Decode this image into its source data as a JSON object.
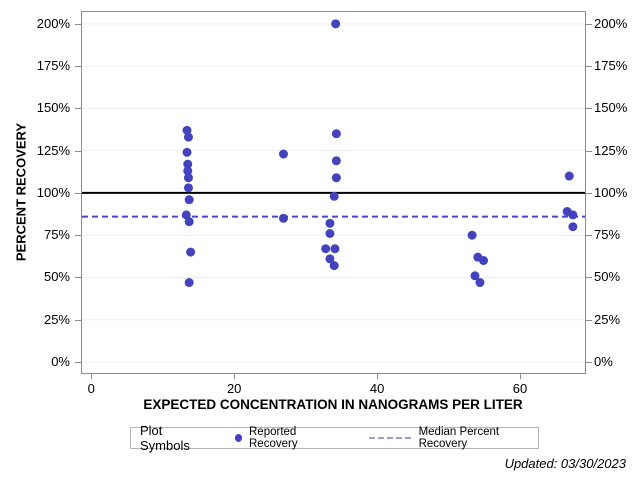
{
  "footer": {
    "updated_text": "Updated: 03/30/2023"
  },
  "colors": {
    "marker": "#4343bd",
    "median_line": "#4848c4",
    "reference_line": "#000000",
    "grid": "#ededed",
    "frame": "#8b8b8b",
    "legend_dash": "#98a0d2",
    "text": "#000000"
  },
  "chart_data": {
    "type": "scatter",
    "title": "",
    "xlabel": "EXPECTED CONCENTRATION IN NANOGRAMS PER LITER",
    "ylabel": "PERCENT RECOVERY",
    "x_axis": {
      "min": -1.3,
      "max": 69.1,
      "ticks": [
        0,
        20,
        40,
        60
      ]
    },
    "y_axis": {
      "min": -6.5,
      "max": 207,
      "ticks": [
        0,
        25,
        50,
        75,
        100,
        125,
        150,
        175,
        200
      ],
      "tick_suffix": "%",
      "mirror_right": true
    },
    "grid": true,
    "reference_lines": [
      {
        "name": "hundred-percent-reference-line",
        "value": 100,
        "style": "solid",
        "width": 2
      },
      {
        "name": "median-percent-recovery-line",
        "value": 86,
        "style": "dashed",
        "width": 2
      }
    ],
    "series": [
      {
        "name": "Reported Recovery",
        "marker": "circle",
        "points": [
          [
            13.4,
            137
          ],
          [
            13.6,
            133
          ],
          [
            13.4,
            124
          ],
          [
            13.5,
            117
          ],
          [
            13.5,
            113
          ],
          [
            13.6,
            109
          ],
          [
            13.6,
            103
          ],
          [
            13.7,
            96
          ],
          [
            13.3,
            87
          ],
          [
            13.7,
            83
          ],
          [
            13.9,
            65
          ],
          [
            13.7,
            47
          ],
          [
            26.9,
            123
          ],
          [
            26.9,
            85
          ],
          [
            34.2,
            200
          ],
          [
            34.3,
            135
          ],
          [
            34.3,
            119
          ],
          [
            34.3,
            109
          ],
          [
            34.0,
            98
          ],
          [
            33.4,
            82
          ],
          [
            33.4,
            76
          ],
          [
            32.8,
            67
          ],
          [
            34.1,
            67
          ],
          [
            33.4,
            61
          ],
          [
            34.0,
            57
          ],
          [
            53.3,
            75
          ],
          [
            54.1,
            62
          ],
          [
            54.9,
            60
          ],
          [
            53.7,
            51
          ],
          [
            54.4,
            47
          ],
          [
            66.9,
            110
          ],
          [
            66.6,
            89
          ],
          [
            67.4,
            87
          ],
          [
            67.4,
            80
          ]
        ]
      }
    ],
    "legend": {
      "title": "Plot Symbols",
      "position": "bottom",
      "entries": [
        {
          "symbol": "dot",
          "label": "Reported Recovery"
        },
        {
          "symbol": "dashed-line",
          "label": "Median Percent Recovery"
        }
      ]
    }
  }
}
